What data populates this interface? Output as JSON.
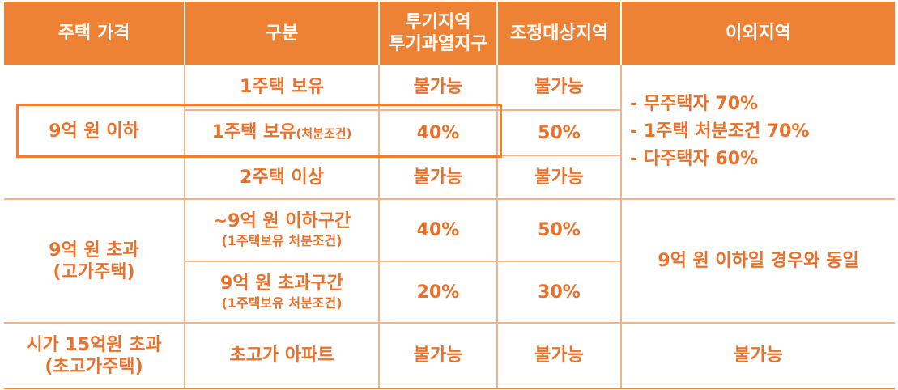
{
  "header": {
    "col1": "주택 가격",
    "col2": "구분",
    "col3_line1": "투기지역",
    "col3_line2": "투기과열지구",
    "col4": "조정대상지역",
    "col5": "이외지역"
  },
  "group1": {
    "price": "9억 원 이하",
    "row1": {
      "label": "1주택 보유",
      "c3": "불가능",
      "c4": "불가능"
    },
    "row2": {
      "label": "1주택 보유",
      "label_small": "(처분조건)",
      "c3": "40%",
      "c4": "50%"
    },
    "row3": {
      "label": "2주택 이상",
      "c3": "불가능",
      "c4": "불가능"
    },
    "other": [
      "- 무주택자 70%",
      "- 1주택 처분조건 70%",
      "- 다주택자 60%"
    ]
  },
  "group2": {
    "price_line1": "9억 원 초과",
    "price_line2": "(고가주택)",
    "row1": {
      "label": "~9억 원 이하구간",
      "sub": "(1주택보유 처분조건)",
      "c3": "40%",
      "c4": "50%"
    },
    "row2": {
      "label": "9억 원 초과구간",
      "sub": "(1주택보유 처분조건)",
      "c3": "20%",
      "c4": "30%"
    },
    "other": "9억 원 이하일 경우와 동일"
  },
  "group3": {
    "price_line1": "시가 15억원 초과",
    "price_line2": "(초고가주택)",
    "label": "초고가 아파트",
    "c3": "불가능",
    "c4": "불가능",
    "other": "불가능"
  }
}
